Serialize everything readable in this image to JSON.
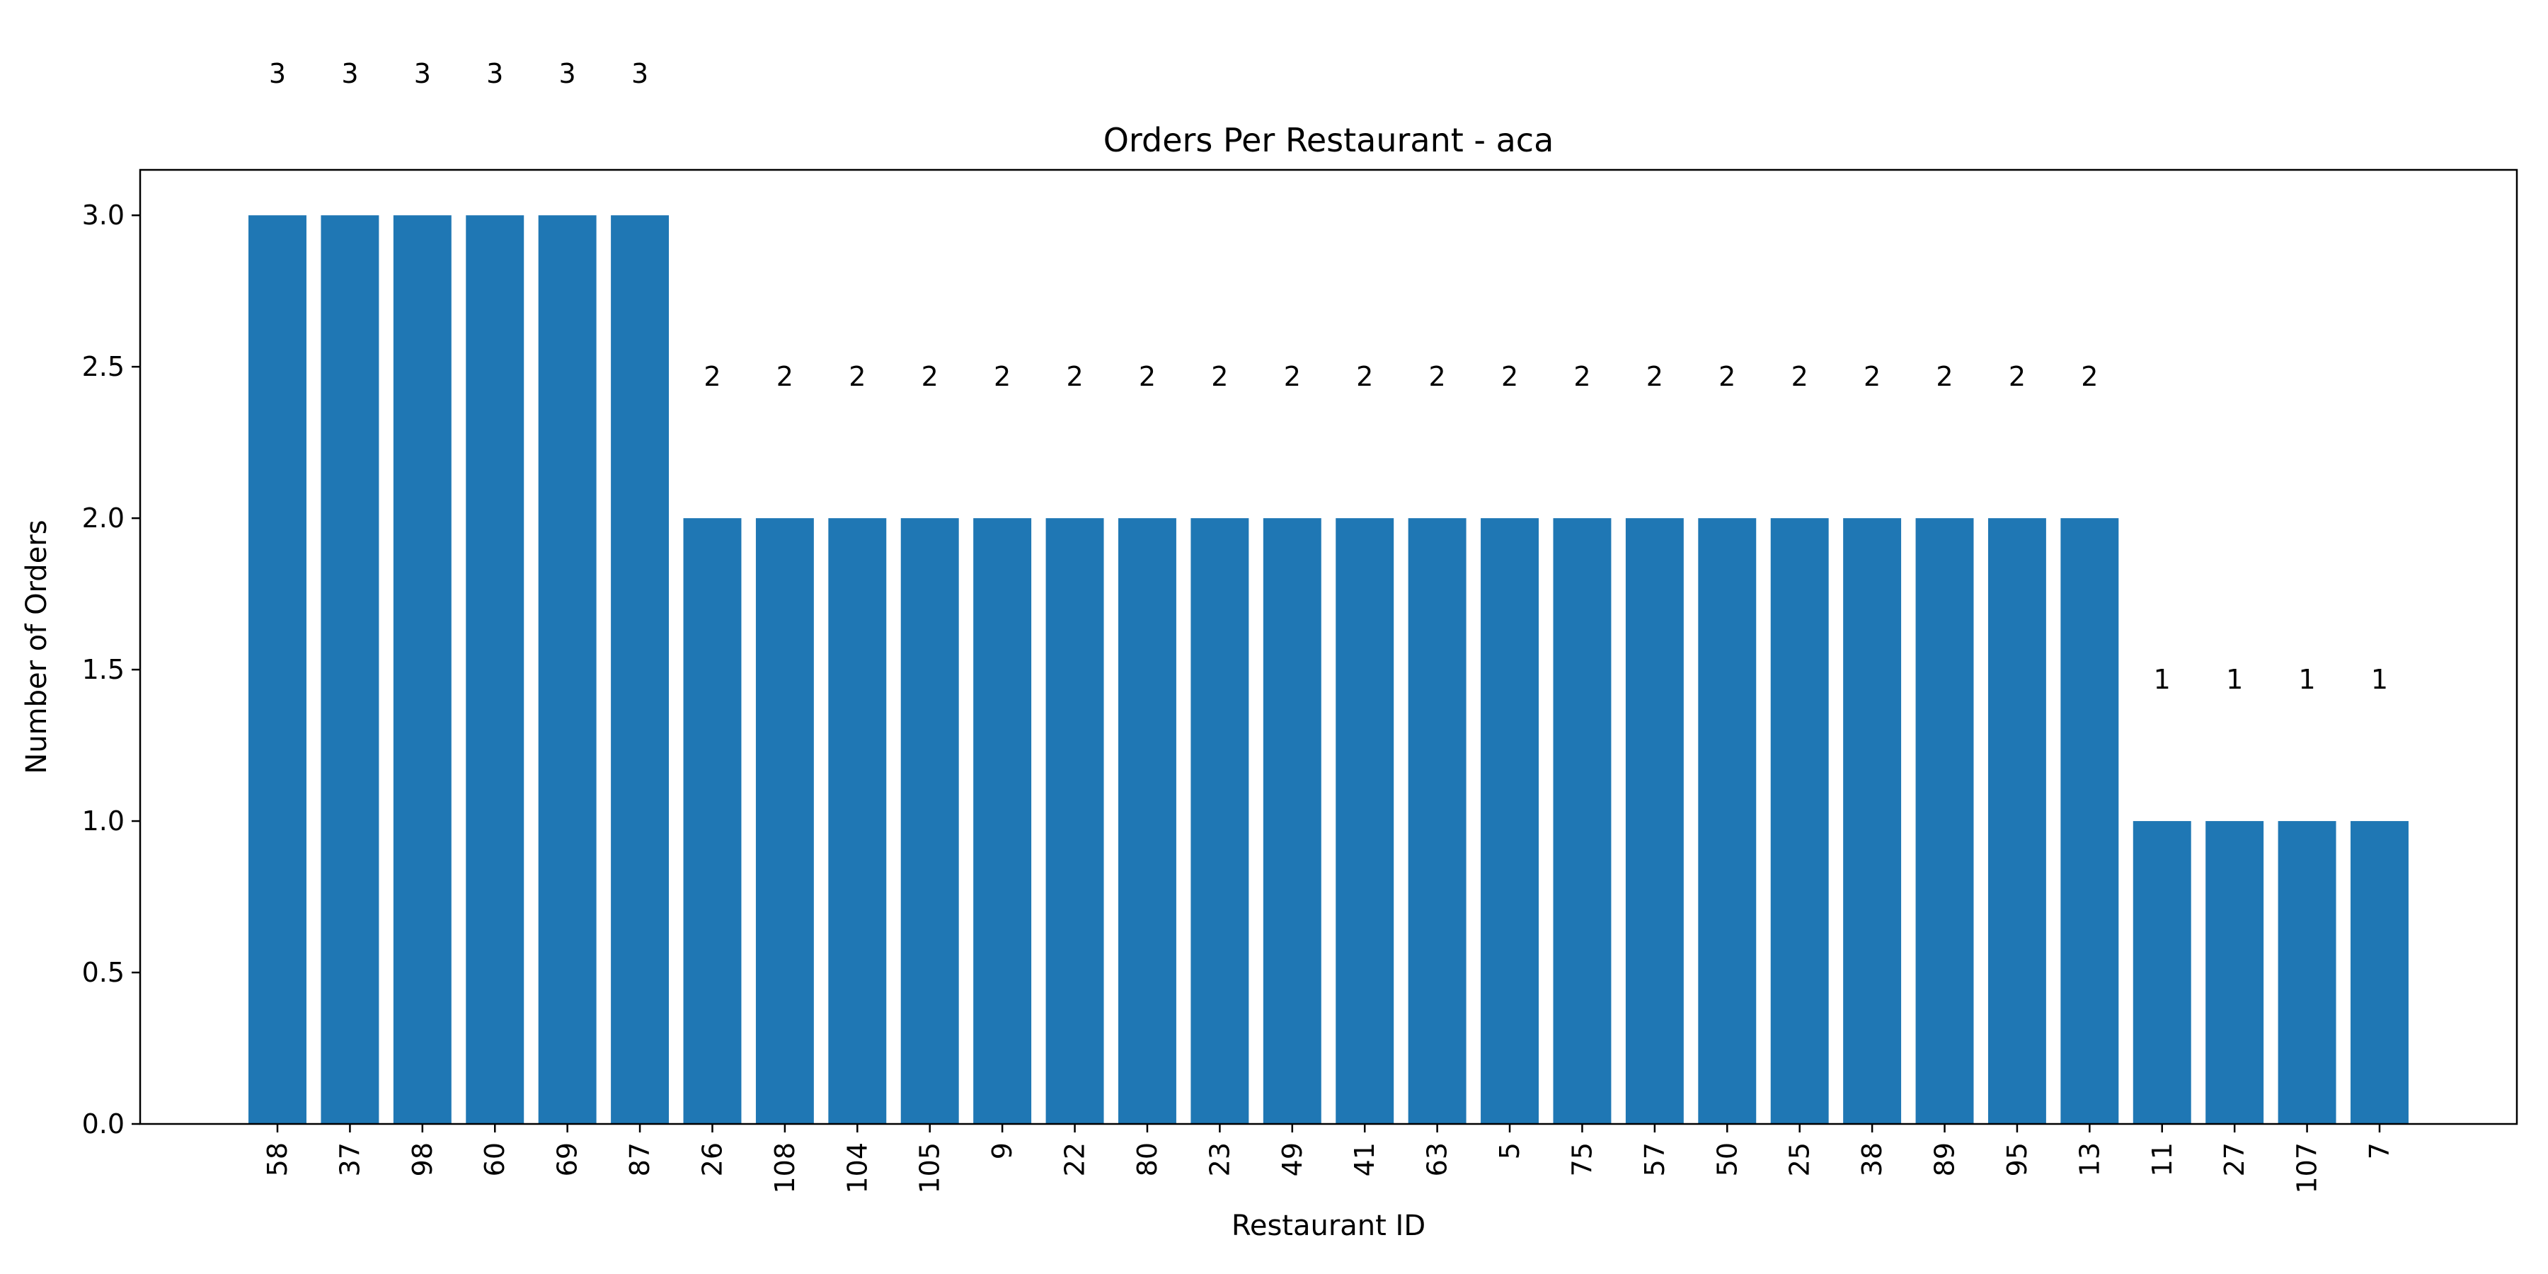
{
  "chart_data": {
    "type": "bar",
    "title": "Orders Per Restaurant - aca",
    "xlabel": "Restaurant ID",
    "ylabel": "Number of Orders",
    "ylim": [
      0,
      3.15
    ],
    "yticks": [
      "0.0",
      "0.5",
      "1.0",
      "1.5",
      "2.0",
      "2.5",
      "3.0"
    ],
    "categories": [
      "58",
      "37",
      "98",
      "60",
      "69",
      "87",
      "26",
      "108",
      "104",
      "105",
      "9",
      "22",
      "80",
      "23",
      "49",
      "41",
      "63",
      "5",
      "75",
      "57",
      "50",
      "25",
      "38",
      "89",
      "95",
      "13",
      "11",
      "27",
      "107",
      "7"
    ],
    "values": [
      3,
      3,
      3,
      3,
      3,
      3,
      2,
      2,
      2,
      2,
      2,
      2,
      2,
      2,
      2,
      2,
      2,
      2,
      2,
      2,
      2,
      2,
      2,
      2,
      2,
      2,
      1,
      1,
      1,
      1
    ],
    "bar_color": "#1f77b4",
    "grid": false,
    "legend": "none"
  }
}
